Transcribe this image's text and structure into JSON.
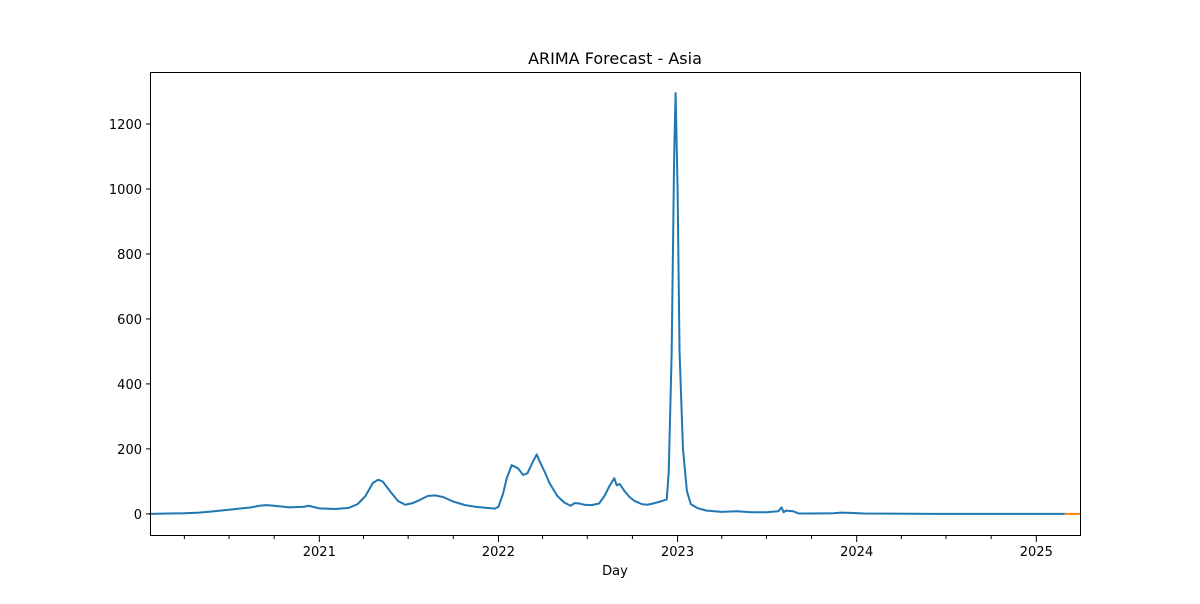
{
  "chart_data": {
    "type": "line",
    "title": "ARIMA Forecast - Asia",
    "xlabel": "Day",
    "ylabel": "",
    "x_range": [
      "2020-01-22",
      "2025-03-31"
    ],
    "ylim": [
      -65,
      1360
    ],
    "grid": false,
    "legend": "none",
    "x_ticks": [
      {
        "label": "2021",
        "date": "2021-01-01"
      },
      {
        "label": "2022",
        "date": "2022-01-01"
      },
      {
        "label": "2023",
        "date": "2023-01-01"
      },
      {
        "label": "2024",
        "date": "2024-01-01"
      },
      {
        "label": "2025",
        "date": "2025-01-01"
      }
    ],
    "y_ticks": [
      0,
      200,
      400,
      600,
      800,
      1000,
      1200
    ],
    "series": [
      {
        "color": "#1f77b4",
        "points": [
          [
            "2020-01-22",
            0
          ],
          [
            "2020-03-01",
            1
          ],
          [
            "2020-04-01",
            2
          ],
          [
            "2020-05-01",
            4
          ],
          [
            "2020-06-01",
            8
          ],
          [
            "2020-07-15",
            15
          ],
          [
            "2020-08-15",
            20
          ],
          [
            "2020-09-01",
            25
          ],
          [
            "2020-09-15",
            27
          ],
          [
            "2020-10-01",
            25
          ],
          [
            "2020-11-01",
            20
          ],
          [
            "2020-12-01",
            22
          ],
          [
            "2020-12-10",
            25
          ],
          [
            "2021-01-01",
            17
          ],
          [
            "2021-02-01",
            15
          ],
          [
            "2021-03-01",
            18
          ],
          [
            "2021-03-20",
            30
          ],
          [
            "2021-04-05",
            55
          ],
          [
            "2021-04-20",
            95
          ],
          [
            "2021-05-01",
            105
          ],
          [
            "2021-05-10",
            100
          ],
          [
            "2021-05-25",
            70
          ],
          [
            "2021-06-10",
            40
          ],
          [
            "2021-06-25",
            28
          ],
          [
            "2021-07-10",
            33
          ],
          [
            "2021-07-25",
            43
          ],
          [
            "2021-08-10",
            55
          ],
          [
            "2021-08-25",
            57
          ],
          [
            "2021-09-10",
            52
          ],
          [
            "2021-10-01",
            38
          ],
          [
            "2021-10-25",
            27
          ],
          [
            "2021-11-15",
            22
          ],
          [
            "2021-12-05",
            19
          ],
          [
            "2021-12-25",
            16
          ],
          [
            "2022-01-01",
            22
          ],
          [
            "2022-01-10",
            60
          ],
          [
            "2022-01-18",
            110
          ],
          [
            "2022-01-28",
            150
          ],
          [
            "2022-02-10",
            140
          ],
          [
            "2022-02-20",
            120
          ],
          [
            "2022-03-01",
            125
          ],
          [
            "2022-03-12",
            160
          ],
          [
            "2022-03-20",
            183
          ],
          [
            "2022-03-25",
            165
          ],
          [
            "2022-04-05",
            130
          ],
          [
            "2022-04-15",
            95
          ],
          [
            "2022-05-01",
            55
          ],
          [
            "2022-05-15",
            35
          ],
          [
            "2022-05-28",
            25
          ],
          [
            "2022-06-05",
            33
          ],
          [
            "2022-06-15",
            32
          ],
          [
            "2022-06-25",
            28
          ],
          [
            "2022-07-10",
            27
          ],
          [
            "2022-07-25",
            32
          ],
          [
            "2022-08-05",
            55
          ],
          [
            "2022-08-15",
            85
          ],
          [
            "2022-08-25",
            110
          ],
          [
            "2022-08-30",
            88
          ],
          [
            "2022-09-05",
            92
          ],
          [
            "2022-09-15",
            70
          ],
          [
            "2022-09-25",
            52
          ],
          [
            "2022-10-05",
            40
          ],
          [
            "2022-10-20",
            30
          ],
          [
            "2022-11-01",
            28
          ],
          [
            "2022-11-15",
            33
          ],
          [
            "2022-12-01",
            40
          ],
          [
            "2022-12-10",
            45
          ],
          [
            "2022-12-14",
            130
          ],
          [
            "2022-12-20",
            500
          ],
          [
            "2022-12-25",
            1100
          ],
          [
            "2022-12-28",
            1295
          ],
          [
            "2023-01-01",
            1000
          ],
          [
            "2023-01-05",
            500
          ],
          [
            "2023-01-12",
            200
          ],
          [
            "2023-01-20",
            70
          ],
          [
            "2023-01-28",
            30
          ],
          [
            "2023-02-10",
            18
          ],
          [
            "2023-03-01",
            10
          ],
          [
            "2023-04-01",
            6
          ],
          [
            "2023-05-01",
            8
          ],
          [
            "2023-06-01",
            5
          ],
          [
            "2023-07-01",
            5
          ],
          [
            "2023-07-25",
            8
          ],
          [
            "2023-08-01",
            20
          ],
          [
            "2023-08-05",
            5
          ],
          [
            "2023-08-10",
            10
          ],
          [
            "2023-08-25",
            8
          ],
          [
            "2023-09-05",
            1
          ],
          [
            "2023-10-01",
            1
          ],
          [
            "2023-11-15",
            2
          ],
          [
            "2023-12-01",
            4
          ],
          [
            "2023-12-20",
            3
          ],
          [
            "2024-01-15",
            1
          ],
          [
            "2024-06-01",
            0
          ],
          [
            "2025-02-28",
            0
          ]
        ]
      },
      {
        "color": "#ff7f0e",
        "points": [
          [
            "2025-03-01",
            0
          ],
          [
            "2025-03-31",
            0
          ]
        ]
      }
    ]
  }
}
